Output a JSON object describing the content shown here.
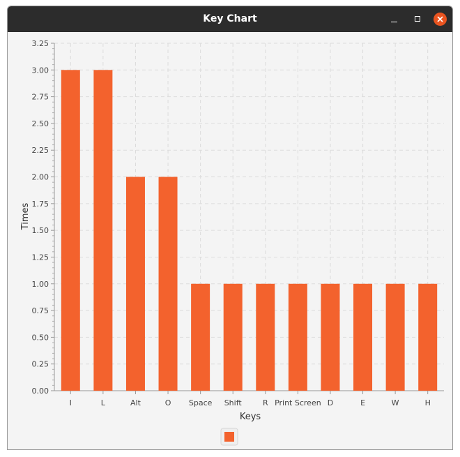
{
  "window": {
    "title": "Key Chart"
  },
  "colors": {
    "bar": "#f3622d",
    "titlebar": "#2c2c2c",
    "close": "#e95420"
  },
  "icons": {
    "minimize": "minimize-icon",
    "maximize": "maximize-icon",
    "close": "close-icon"
  },
  "chart_data": {
    "type": "bar",
    "categories": [
      "I",
      "L",
      "Alt",
      "O",
      "Space",
      "Shift",
      "R",
      "Print Screen",
      "D",
      "E",
      "W",
      "H"
    ],
    "values": [
      3,
      3,
      2,
      2,
      1,
      1,
      1,
      1,
      1,
      1,
      1,
      1
    ],
    "title": "",
    "xlabel": "Keys",
    "ylabel": "Times",
    "ylim": [
      0,
      3.25
    ],
    "ytick_step": 0.25,
    "grid": true,
    "legend": "bottom-center"
  }
}
